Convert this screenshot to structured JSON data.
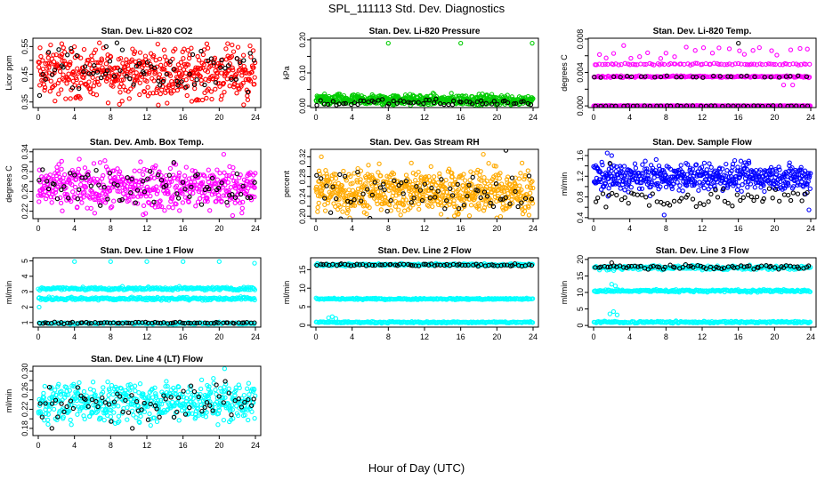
{
  "figure": {
    "title": "SPL_111113  Std. Dev. Diagnostics",
    "xlabel": "Hour of Day (UTC)"
  },
  "chart_data": [
    {
      "type": "scatter",
      "title": "Stan. Dev. Li-820 CO2",
      "ylabel": "Licor ppm",
      "xlim": [
        0,
        24
      ],
      "xticks": [
        0,
        4,
        8,
        12,
        16,
        20,
        24
      ],
      "ylim": [
        0.33,
        0.58
      ],
      "yticks": [
        0.35,
        0.4,
        0.45,
        0.5,
        0.55
      ],
      "ytick_labels": [
        "0.35",
        "",
        "0.45",
        "",
        "0.55"
      ],
      "series": [
        {
          "color": "#ff0000",
          "bands": [
            {
              "center": 0.455,
              "spread": 0.045,
              "count": 520
            }
          ],
          "outliers": [
            {
              "x": 22.7,
              "y": 0.34
            },
            {
              "x": 2.6,
              "y": 0.56
            }
          ]
        },
        {
          "color": "#000000",
          "bands": [
            {
              "center": 0.46,
              "spread": 0.04,
              "count": 70
            }
          ],
          "outliers": [
            {
              "x": 7.5,
              "y": 0.55
            }
          ]
        }
      ]
    },
    {
      "type": "scatter",
      "title": "Stan. Dev. Li-820 Pressure",
      "ylabel": "kPa",
      "xlim": [
        0,
        24
      ],
      "xticks": [
        0,
        4,
        8,
        12,
        16,
        20,
        24
      ],
      "ylim": [
        -0.005,
        0.205
      ],
      "yticks": [
        0.0,
        0.05,
        0.1,
        0.15,
        0.2
      ],
      "ytick_labels": [
        "0.00",
        "",
        "0.10",
        "",
        "0.20"
      ],
      "series": [
        {
          "color": "#00cc00",
          "bands": [
            {
              "center": 0.018,
              "spread": 0.008,
              "count": 520
            }
          ],
          "outliers": [
            {
              "x": 8.0,
              "y": 0.19
            },
            {
              "x": 16.0,
              "y": 0.19
            },
            {
              "x": 23.9,
              "y": 0.19
            }
          ]
        },
        {
          "color": "#000000",
          "bands": [
            {
              "center": 0.01,
              "spread": 0.005,
              "count": 60
            }
          ],
          "outliers": []
        }
      ]
    },
    {
      "type": "scatter",
      "title": "Stan. Dev. Li-820 Temp.",
      "ylabel": "degrees C",
      "xlim": [
        0,
        24
      ],
      "xticks": [
        0,
        4,
        8,
        12,
        16,
        20,
        24
      ],
      "ylim": [
        -0.0002,
        0.0081
      ],
      "yticks": [
        0.0,
        0.002,
        0.004,
        0.006,
        0.008
      ],
      "ytick_labels": [
        "0.000",
        "",
        "0.004",
        "",
        "0.008"
      ],
      "series": [
        {
          "color": "#ff00ff",
          "bands": [
            {
              "center": 0.0,
              "spread": 2e-05,
              "count": 300
            },
            {
              "center": 0.0035,
              "spread": 5e-05,
              "count": 170
            },
            {
              "center": 0.005,
              "spread": 5e-05,
              "count": 80
            },
            {
              "center": 0.0065,
              "spread": 0.0005,
              "count": 25
            }
          ],
          "outliers": [
            {
              "x": 21.0,
              "y": 0.0025
            },
            {
              "x": 22.0,
              "y": 0.0025
            }
          ]
        },
        {
          "color": "#000000",
          "bands": [
            {
              "center": 0.0,
              "spread": 2e-05,
              "count": 40
            },
            {
              "center": 0.0035,
              "spread": 5e-05,
              "count": 30
            }
          ],
          "outliers": [
            {
              "x": 16.0,
              "y": 0.0075
            }
          ]
        }
      ]
    },
    {
      "type": "scatter",
      "title": "Stan. Dev. Amb. Box Temp.",
      "ylabel": "degrees C",
      "xlim": [
        0,
        24
      ],
      "xticks": [
        0,
        4,
        8,
        12,
        16,
        20,
        24
      ],
      "ylim": [
        0.205,
        0.345
      ],
      "yticks": [
        0.22,
        0.24,
        0.26,
        0.28,
        0.3,
        0.32,
        0.34
      ],
      "ytick_labels": [
        "0.22",
        "",
        "0.26",
        "",
        "0.30",
        "",
        "0.34"
      ],
      "series": [
        {
          "color": "#ff00ff",
          "bands": [
            {
              "center": 0.268,
              "spread": 0.022,
              "count": 520
            }
          ],
          "outliers": [
            {
              "x": 11.6,
              "y": 0.213
            },
            {
              "x": 20.5,
              "y": 0.335
            }
          ]
        },
        {
          "color": "#000000",
          "bands": [
            {
              "center": 0.27,
              "spread": 0.02,
              "count": 70
            }
          ],
          "outliers": []
        }
      ]
    },
    {
      "type": "scatter",
      "title": "Stan. Dev. Gas Stream RH",
      "ylabel": "percent",
      "xlim": [
        0,
        24
      ],
      "xticks": [
        0,
        4,
        8,
        12,
        16,
        20,
        24
      ],
      "ylim": [
        0.195,
        0.335
      ],
      "yticks": [
        0.2,
        0.22,
        0.24,
        0.26,
        0.28,
        0.3,
        0.32
      ],
      "ytick_labels": [
        "0.20",
        "",
        "0.24",
        "",
        "0.28",
        "",
        "0.32"
      ],
      "series": [
        {
          "color": "#ffaa00",
          "bands": [
            {
              "center": 0.25,
              "spread": 0.022,
              "count": 650
            }
          ],
          "outliers": [
            {
              "x": 0.6,
              "y": 0.32
            },
            {
              "x": 18.5,
              "y": 0.325
            }
          ]
        },
        {
          "color": "#000000",
          "bands": [
            {
              "center": 0.245,
              "spread": 0.02,
              "count": 70
            }
          ],
          "outliers": [
            {
              "x": 21.0,
              "y": 0.333
            }
          ]
        }
      ]
    },
    {
      "type": "scatter",
      "title": "Stan. Dev. Sample Flow",
      "ylabel": "ml/min",
      "xlim": [
        0,
        24
      ],
      "xticks": [
        0,
        4,
        8,
        12,
        16,
        20,
        24
      ],
      "ylim": [
        0.38,
        1.72
      ],
      "yticks": [
        0.4,
        0.6,
        0.8,
        1.0,
        1.2,
        1.4,
        1.6
      ],
      "ytick_labels": [
        "0.4",
        "",
        "0.8",
        "",
        "1.2",
        "",
        "1.6"
      ],
      "series": [
        {
          "color": "#0000ff",
          "bands": [
            {
              "center": 1.18,
              "spread": 0.13,
              "count": 520
            }
          ],
          "outliers": [
            {
              "x": 1.5,
              "y": 1.65
            },
            {
              "x": 2.0,
              "y": 1.6
            },
            {
              "x": 7.8,
              "y": 0.45
            },
            {
              "x": 23.8,
              "y": 0.55
            }
          ]
        },
        {
          "color": "#000000",
          "bands": [
            {
              "center": 0.78,
              "spread": 0.1,
              "count": 60
            }
          ],
          "outliers": [
            {
              "x": 1.8,
              "y": 1.45
            }
          ]
        }
      ]
    },
    {
      "type": "scatter",
      "title": "Stan. Dev. Line 1 Flow",
      "ylabel": "ml/min",
      "xlim": [
        0,
        24
      ],
      "xticks": [
        0,
        4,
        8,
        12,
        16,
        20,
        24
      ],
      "ylim": [
        0.7,
        5.2
      ],
      "yticks": [
        1,
        2,
        3,
        4,
        5
      ],
      "ytick_labels": [
        "1",
        "2",
        "3",
        "4",
        "5"
      ],
      "series": [
        {
          "color": "#00ffff",
          "bands": [
            {
              "center": 3.2,
              "spread": 0.05,
              "count": 230
            },
            {
              "center": 2.55,
              "spread": 0.05,
              "count": 230
            },
            {
              "center": 0.95,
              "spread": 0.03,
              "count": 150
            }
          ],
          "outliers": [
            {
              "x": 4.0,
              "y": 4.95
            },
            {
              "x": 8.0,
              "y": 4.95
            },
            {
              "x": 12.0,
              "y": 4.95
            },
            {
              "x": 16.0,
              "y": 4.95
            },
            {
              "x": 20.0,
              "y": 4.95
            },
            {
              "x": 23.9,
              "y": 4.85
            },
            {
              "x": 0.1,
              "y": 2.0
            }
          ]
        },
        {
          "color": "#000000",
          "bands": [
            {
              "center": 0.98,
              "spread": 0.03,
              "count": 70
            }
          ],
          "outliers": []
        }
      ]
    },
    {
      "type": "scatter",
      "title": "Stan. Dev. Line 2 Flow",
      "ylabel": "ml/min",
      "xlim": [
        0,
        24
      ],
      "xticks": [
        0,
        4,
        8,
        12,
        16,
        20,
        24
      ],
      "ylim": [
        -0.5,
        18.2
      ],
      "yticks": [
        0,
        5,
        10,
        15
      ],
      "ytick_labels": [
        "0",
        "5",
        "10",
        "15"
      ],
      "series": [
        {
          "color": "#00ffff",
          "bands": [
            {
              "center": 16.3,
              "spread": 0.15,
              "count": 230
            },
            {
              "center": 7.1,
              "spread": 0.1,
              "count": 230
            },
            {
              "center": 0.8,
              "spread": 0.1,
              "count": 230
            }
          ],
          "outliers": [
            {
              "x": 1.4,
              "y": 2.0
            },
            {
              "x": 1.8,
              "y": 2.3
            },
            {
              "x": 2.2,
              "y": 1.8
            }
          ]
        },
        {
          "color": "#000000",
          "bands": [
            {
              "center": 16.3,
              "spread": 0.2,
              "count": 70
            }
          ],
          "outliers": []
        }
      ]
    },
    {
      "type": "scatter",
      "title": "Stan. Dev. Line 3 Flow",
      "ylabel": "ml/min",
      "xlim": [
        0,
        24
      ],
      "xticks": [
        0,
        4,
        8,
        12,
        16,
        20,
        24
      ],
      "ylim": [
        -0.5,
        20.5
      ],
      "yticks": [
        0,
        5,
        10,
        15,
        20
      ],
      "ytick_labels": [
        "0",
        "5",
        "10",
        "15",
        "20"
      ],
      "series": [
        {
          "color": "#00ffff",
          "bands": [
            {
              "center": 17.5,
              "spread": 0.3,
              "count": 230
            },
            {
              "center": 10.5,
              "spread": 0.2,
              "count": 230
            },
            {
              "center": 1.0,
              "spread": 0.15,
              "count": 230
            }
          ],
          "outliers": [
            {
              "x": 1.8,
              "y": 3.5
            },
            {
              "x": 2.2,
              "y": 4.2
            },
            {
              "x": 2.6,
              "y": 3.2
            },
            {
              "x": 2.0,
              "y": 12.5
            },
            {
              "x": 2.4,
              "y": 12.0
            }
          ]
        },
        {
          "color": "#000000",
          "bands": [
            {
              "center": 17.7,
              "spread": 0.3,
              "count": 70
            }
          ],
          "outliers": [
            {
              "x": 2.0,
              "y": 19.0
            }
          ]
        }
      ]
    },
    {
      "type": "scatter",
      "title": "Stan. Dev. Line 4 (LT) Flow",
      "ylabel": "ml/min",
      "xlim": [
        0,
        24
      ],
      "xticks": [
        0,
        4,
        8,
        12,
        16,
        20,
        24
      ],
      "ylim": [
        0.165,
        0.31
      ],
      "yticks": [
        0.18,
        0.2,
        0.22,
        0.24,
        0.26,
        0.28,
        0.3
      ],
      "ytick_labels": [
        "0.18",
        "",
        "0.22",
        "",
        "0.26",
        "",
        "0.30"
      ],
      "series": [
        {
          "color": "#00ffff",
          "bands": [
            {
              "center": 0.235,
              "spread": 0.02,
              "count": 520
            }
          ],
          "outliers": [
            {
              "x": 20.6,
              "y": 0.305
            }
          ]
        },
        {
          "color": "#000000",
          "bands": [
            {
              "center": 0.235,
              "spread": 0.02,
              "count": 70
            }
          ],
          "outliers": [
            {
              "x": 1.5,
              "y": 0.18
            },
            {
              "x": 10.4,
              "y": 0.18
            }
          ]
        }
      ]
    }
  ]
}
